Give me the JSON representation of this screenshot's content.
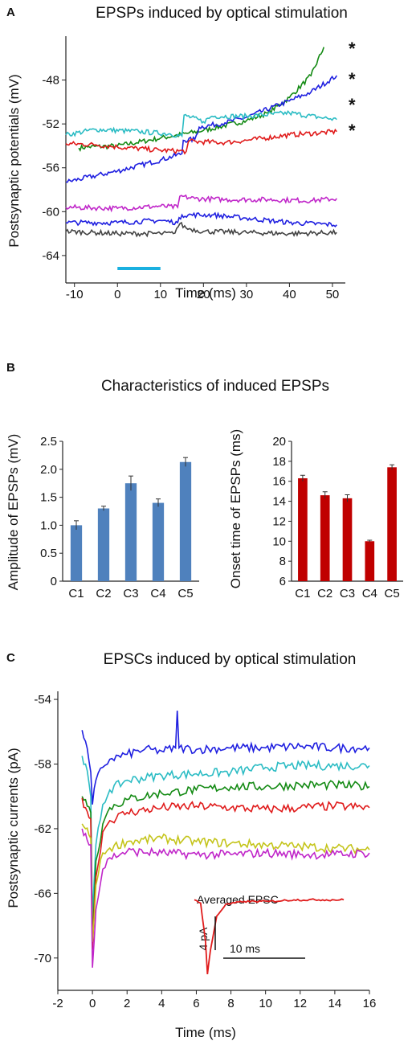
{
  "panel_letters": {
    "a": "A",
    "b": "B",
    "c": "C"
  },
  "panel_b_heading": "Characteristics of induced EPSPs",
  "colors": {
    "green": "#138a13",
    "blue": "#1f1fe0",
    "cyan": "#2bbcc4",
    "red": "#e01b1b",
    "magenta": "#c026c9",
    "black": "#444444",
    "yellow": "#c4c41a",
    "stim_bar": "#1ab0e0",
    "bar_blue": "#4f81bd",
    "bar_red": "#c00000"
  },
  "chart_data": [
    {
      "type": "line",
      "title": "EPSPs induced by optical stimulation",
      "xlabel": "Time (ms)",
      "ylabel": "Postsynaptic potentials (mV)",
      "xlim": [
        -12,
        53
      ],
      "ylim": [
        -66.5,
        -44
      ],
      "xticks": [
        -10,
        0,
        10,
        20,
        30,
        40,
        50
      ],
      "yticks": [
        -48,
        -52,
        -56,
        -60,
        -64
      ],
      "stimulus": {
        "start": 0,
        "end": 10
      },
      "annotations": [
        "*",
        "*",
        "*",
        "*"
      ],
      "series": [
        {
          "color": "green",
          "points": [
            [
              -9,
              -54.2
            ],
            [
              -7,
              -54.1
            ],
            [
              0,
              -54.0
            ],
            [
              10,
              -53.3
            ],
            [
              20,
              -52.6
            ],
            [
              30,
              -51.7
            ],
            [
              35,
              -51.0
            ],
            [
              40,
              -49.6
            ],
            [
              45,
              -47.6
            ],
            [
              48,
              -45.0
            ]
          ]
        },
        {
          "color": "blue",
          "points": [
            [
              -12,
              -57.3
            ],
            [
              0,
              -56.3
            ],
            [
              10,
              -55.3
            ],
            [
              15,
              -54.7
            ],
            [
              15.3,
              -53.5
            ],
            [
              18,
              -53.4
            ],
            [
              19,
              -52.3
            ],
            [
              25,
              -51.9
            ],
            [
              30,
              -51.4
            ],
            [
              40,
              -49.9
            ],
            [
              45,
              -49.1
            ],
            [
              51,
              -47.6
            ]
          ]
        },
        {
          "color": "cyan",
          "points": [
            [
              -12,
              -53.0
            ],
            [
              -5,
              -52.5
            ],
            [
              5,
              -52.7
            ],
            [
              12,
              -52.9
            ],
            [
              15,
              -53.1
            ],
            [
              15.5,
              -51.2
            ],
            [
              20,
              -51.8
            ],
            [
              22,
              -51.3
            ],
            [
              30,
              -51.3
            ],
            [
              40,
              -51.0
            ],
            [
              47,
              -51.4
            ],
            [
              51,
              -51.6
            ]
          ]
        },
        {
          "color": "red",
          "points": [
            [
              -12,
              -53.8
            ],
            [
              -5,
              -53.9
            ],
            [
              0,
              -54.1
            ],
            [
              10,
              -54.4
            ],
            [
              16,
              -54.5
            ],
            [
              16.5,
              -53.6
            ],
            [
              25,
              -53.7
            ],
            [
              30,
              -53.5
            ],
            [
              40,
              -53.0
            ],
            [
              51,
              -52.7
            ]
          ]
        },
        {
          "color": "magenta",
          "points": [
            [
              -12,
              -59.6
            ],
            [
              0,
              -59.7
            ],
            [
              10,
              -59.5
            ],
            [
              14,
              -59.6
            ],
            [
              14.5,
              -58.6
            ],
            [
              18,
              -58.8
            ],
            [
              25,
              -58.9
            ],
            [
              35,
              -58.9
            ],
            [
              45,
              -59.0
            ],
            [
              51,
              -58.8
            ]
          ]
        },
        {
          "color": "blue",
          "points": [
            [
              -12,
              -61.0
            ],
            [
              0,
              -61.0
            ],
            [
              10,
              -60.8
            ],
            [
              14,
              -61.0
            ],
            [
              15,
              -60.3
            ],
            [
              22,
              -60.3
            ],
            [
              30,
              -60.6
            ],
            [
              40,
              -61.0
            ],
            [
              51,
              -61.2
            ]
          ]
        },
        {
          "color": "black",
          "points": [
            [
              -12,
              -61.8
            ],
            [
              0,
              -62.0
            ],
            [
              10,
              -62.0
            ],
            [
              13,
              -62.0
            ],
            [
              14.5,
              -61.1
            ],
            [
              16,
              -61.5
            ],
            [
              20,
              -61.8
            ],
            [
              30,
              -61.9
            ],
            [
              40,
              -62.0
            ],
            [
              51,
              -61.9
            ]
          ]
        }
      ]
    },
    {
      "type": "bar",
      "categories": [
        "C1",
        "C2",
        "C3",
        "C4",
        "C5"
      ],
      "values": [
        1.0,
        1.3,
        1.75,
        1.4,
        2.13
      ],
      "errors": [
        0.08,
        0.04,
        0.13,
        0.07,
        0.08
      ],
      "ylabel": "Amplitude of EPSPs (mV)",
      "ylim": [
        0,
        2.5
      ],
      "yticks": [
        "0",
        "0.5",
        "1.0",
        "1.5",
        "2.0",
        "2.5"
      ],
      "color": "bar_blue"
    },
    {
      "type": "bar",
      "categories": [
        "C1",
        "C2",
        "C3",
        "C4",
        "C5"
      ],
      "values": [
        16.3,
        14.6,
        14.3,
        10.0,
        17.4
      ],
      "errors": [
        0.3,
        0.35,
        0.35,
        0.1,
        0.25
      ],
      "ylabel": "Onset time of EPSPs (ms)",
      "ylim": [
        6,
        20
      ],
      "yticks": [
        "6",
        "8",
        "10",
        "12",
        "14",
        "16",
        "18",
        "20"
      ],
      "color": "bar_red"
    },
    {
      "type": "line",
      "title": "EPSCs induced by optical stimulation",
      "xlabel": "Time (ms)",
      "ylabel": "Postsynaptic currents (pA)",
      "xlim": [
        -2,
        16
      ],
      "ylim": [
        -72,
        -53.5
      ],
      "xticks": [
        -2,
        0,
        2,
        4,
        6,
        8,
        10,
        12,
        14,
        16
      ],
      "yticks": [
        -54,
        -58,
        -62,
        -66,
        -70
      ],
      "series": [
        {
          "color": "blue",
          "points": [
            [
              -0.6,
              -55.9
            ],
            [
              -0.4,
              -56.6
            ],
            [
              -0.1,
              -58.5
            ],
            [
              0.0,
              -60.5
            ],
            [
              0.2,
              -59.0
            ],
            [
              0.6,
              -58.2
            ],
            [
              1,
              -57.7
            ],
            [
              2,
              -57.4
            ],
            [
              3,
              -57.1
            ],
            [
              4,
              -57.2
            ],
            [
              4.8,
              -57.0
            ],
            [
              4.9,
              -54.7
            ],
            [
              5.0,
              -57.0
            ],
            [
              6,
              -57.1
            ],
            [
              8,
              -57.0
            ],
            [
              10,
              -57.0
            ],
            [
              12,
              -56.9
            ],
            [
              14,
              -57.0
            ],
            [
              16,
              -57.0
            ]
          ]
        },
        {
          "color": "cyan",
          "points": [
            [
              -0.6,
              -57.5
            ],
            [
              -0.4,
              -58.0
            ],
            [
              -0.1,
              -60.0
            ],
            [
              0.0,
              -67.5
            ],
            [
              0.2,
              -63.0
            ],
            [
              0.6,
              -60.5
            ],
            [
              1,
              -59.6
            ],
            [
              2,
              -59.0
            ],
            [
              4,
              -58.7
            ],
            [
              6,
              -58.6
            ],
            [
              8,
              -58.5
            ],
            [
              10,
              -58.2
            ],
            [
              12,
              -58.1
            ],
            [
              14,
              -58.1
            ],
            [
              16,
              -58.1
            ]
          ]
        },
        {
          "color": "green",
          "points": [
            [
              -0.6,
              -60.0
            ],
            [
              -0.4,
              -60.2
            ],
            [
              -0.1,
              -61.0
            ],
            [
              0.0,
              -68.7
            ],
            [
              0.2,
              -64.0
            ],
            [
              0.6,
              -61.7
            ],
            [
              1,
              -60.7
            ],
            [
              2,
              -60.2
            ],
            [
              4,
              -59.8
            ],
            [
              6,
              -59.6
            ],
            [
              8,
              -59.4
            ],
            [
              10,
              -59.4
            ],
            [
              12,
              -59.3
            ],
            [
              14,
              -59.3
            ],
            [
              16,
              -59.4
            ]
          ]
        },
        {
          "color": "red",
          "points": [
            [
              -0.6,
              -60.1
            ],
            [
              -0.4,
              -60.7
            ],
            [
              -0.1,
              -61.4
            ],
            [
              0.0,
              -69.5
            ],
            [
              0.2,
              -65.0
            ],
            [
              0.6,
              -62.2
            ],
            [
              1,
              -61.5
            ],
            [
              2,
              -61.0
            ],
            [
              4,
              -60.7
            ],
            [
              6,
              -60.6
            ],
            [
              8,
              -60.7
            ],
            [
              10,
              -60.8
            ],
            [
              12,
              -60.7
            ],
            [
              14,
              -60.6
            ],
            [
              16,
              -60.7
            ]
          ]
        },
        {
          "color": "yellow",
          "points": [
            [
              -0.6,
              -61.7
            ],
            [
              -0.4,
              -62.0
            ],
            [
              -0.1,
              -62.6
            ],
            [
              0.0,
              -69.0
            ],
            [
              0.2,
              -65.5
            ],
            [
              0.6,
              -63.5
            ],
            [
              1,
              -63.2
            ],
            [
              2,
              -62.8
            ],
            [
              4,
              -62.6
            ],
            [
              6,
              -62.8
            ],
            [
              8,
              -62.9
            ],
            [
              10,
              -63.0
            ],
            [
              12,
              -63.1
            ],
            [
              14,
              -63.2
            ],
            [
              16,
              -63.3
            ]
          ]
        },
        {
          "color": "magenta",
          "points": [
            [
              -0.6,
              -62.0
            ],
            [
              -0.4,
              -62.3
            ],
            [
              -0.1,
              -63.0
            ],
            [
              0.0,
              -70.6
            ],
            [
              0.2,
              -67.0
            ],
            [
              0.6,
              -64.5
            ],
            [
              1,
              -63.8
            ],
            [
              2,
              -63.4
            ],
            [
              4,
              -63.5
            ],
            [
              6,
              -63.6
            ],
            [
              8,
              -63.6
            ],
            [
              10,
              -63.5
            ],
            [
              12,
              -63.6
            ],
            [
              14,
              -63.6
            ],
            [
              16,
              -63.5
            ]
          ]
        }
      ],
      "inset": {
        "title": "Averaged EPSC",
        "scale_y": "4 pA",
        "scale_x": "10 ms",
        "color": "red",
        "points": [
          [
            0,
            -66.4
          ],
          [
            0.5,
            -66.6
          ],
          [
            0.9,
            -69.0
          ],
          [
            1.05,
            -71.0
          ],
          [
            1.3,
            -69.5
          ],
          [
            1.8,
            -67.4
          ],
          [
            2.5,
            -66.7
          ],
          [
            4,
            -66.5
          ],
          [
            6,
            -66.5
          ],
          [
            8,
            -66.4
          ],
          [
            10,
            -66.4
          ],
          [
            12,
            -66.4
          ]
        ]
      }
    }
  ]
}
